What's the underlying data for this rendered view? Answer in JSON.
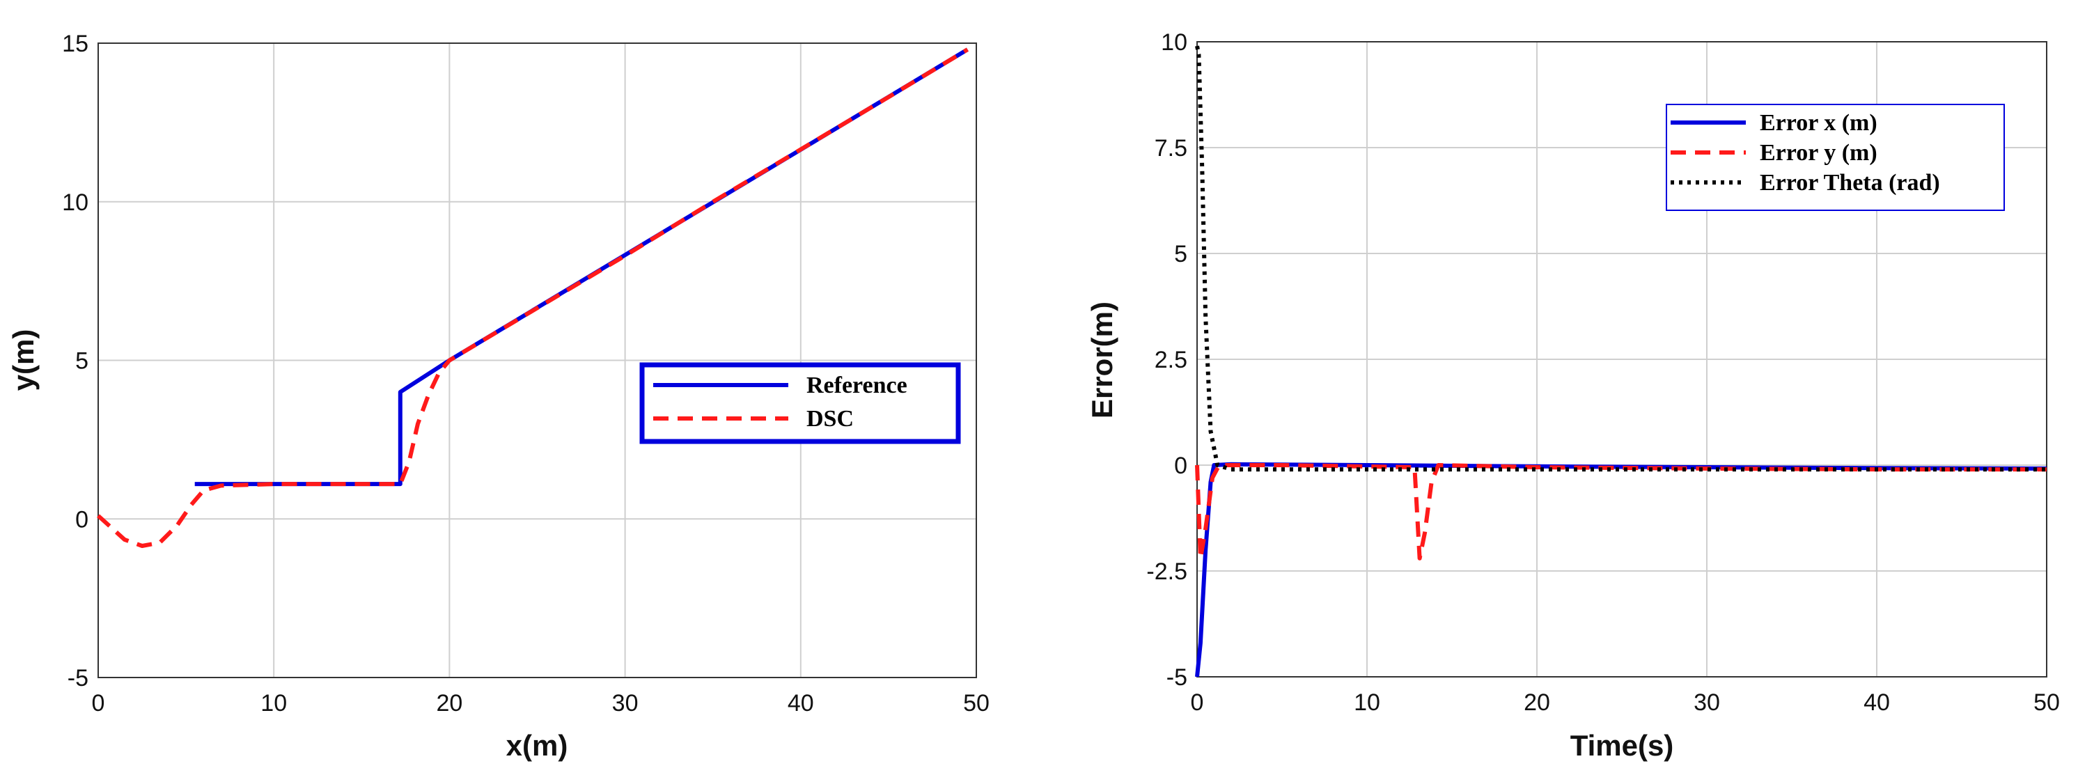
{
  "chart_data": [
    {
      "type": "line",
      "xlabel": "x(m)",
      "ylabel": "y(m)",
      "xlim": [
        0,
        50
      ],
      "ylim": [
        -5,
        15
      ],
      "xticks": [
        "0",
        "10",
        "20",
        "30",
        "40",
        "50"
      ],
      "yticks": [
        "-5",
        "0",
        "5",
        "10",
        "15"
      ],
      "grid": true,
      "legend_position": "center-right",
      "series": [
        {
          "name": "Reference",
          "color": "#0000dd",
          "style": "solid",
          "x": [
            5.5,
            17.2,
            17.2,
            20.0,
            49.5
          ],
          "y": [
            1.1,
            1.1,
            4.0,
            5.0,
            14.8
          ]
        },
        {
          "name": "DSC",
          "color": "#ff1a1a",
          "style": "dashed",
          "x": [
            0.0,
            0.8,
            1.5,
            2.5,
            3.5,
            4.5,
            5.3,
            6.0,
            7.0,
            10.0,
            17.2,
            17.7,
            18.2,
            18.8,
            19.4,
            20.0,
            25.0,
            30.0,
            35.0,
            40.0,
            45.0,
            49.5
          ],
          "y": [
            0.1,
            -0.3,
            -0.65,
            -0.85,
            -0.75,
            -0.2,
            0.45,
            0.9,
            1.05,
            1.1,
            1.1,
            1.8,
            3.0,
            3.9,
            4.6,
            5.0,
            6.65,
            8.3,
            10.0,
            11.65,
            13.3,
            14.8
          ]
        }
      ]
    },
    {
      "type": "line",
      "xlabel": "Time(s)",
      "ylabel": "Error(m)",
      "xlim": [
        0,
        50
      ],
      "ylim": [
        -5,
        10
      ],
      "xticks": [
        "0",
        "10",
        "20",
        "30",
        "40",
        "50"
      ],
      "yticks": [
        "-5",
        "-2.5",
        "0",
        "2.5",
        "5",
        "7.5",
        "10"
      ],
      "grid": true,
      "legend_position": "top-right",
      "series": [
        {
          "name": "Error x (m)",
          "color": "#0000dd",
          "style": "solid",
          "x": [
            0.0,
            0.2,
            0.5,
            0.8,
            1.0,
            2.0,
            10.0,
            20.0,
            30.0,
            40.0,
            50.0
          ],
          "y": [
            -5.0,
            -4.2,
            -2.0,
            -0.4,
            0.0,
            0.02,
            0.0,
            -0.03,
            -0.05,
            -0.07,
            -0.08
          ]
        },
        {
          "name": "Error y (m)",
          "color": "#ff1a1a",
          "style": "dashed",
          "x": [
            0.0,
            0.2,
            0.5,
            0.9,
            1.3,
            5.0,
            12.8,
            13.1,
            13.4,
            13.8,
            14.2,
            20.0,
            30.0,
            40.0,
            50.0
          ],
          "y": [
            0.0,
            -2.2,
            -1.5,
            -0.3,
            0.0,
            0.0,
            -0.05,
            -2.2,
            -1.6,
            -0.4,
            0.0,
            -0.05,
            -0.08,
            -0.1,
            -0.1
          ]
        },
        {
          "name": "Error Theta (rad)",
          "color": "#000000",
          "style": "dotted",
          "x": [
            0.0,
            0.1,
            0.3,
            0.5,
            0.8,
            1.2,
            2.0,
            10.0,
            20.0,
            30.0,
            40.0,
            50.0
          ],
          "y": [
            9.9,
            9.7,
            7.0,
            3.5,
            0.8,
            0.0,
            -0.1,
            -0.1,
            -0.1,
            -0.1,
            -0.1,
            -0.1
          ]
        }
      ]
    }
  ]
}
